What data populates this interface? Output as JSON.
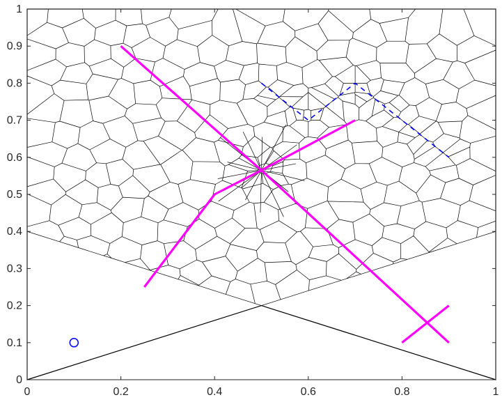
{
  "chart_data": {
    "type": "line",
    "title": "",
    "xlabel": "",
    "ylabel": "",
    "xlim": [
      0,
      1
    ],
    "ylim": [
      0,
      1
    ],
    "grid": false,
    "x_ticks": [
      "0",
      "0.2",
      "0.4",
      "0.6",
      "0.8",
      "1"
    ],
    "y_ticks": [
      "0",
      "0.1",
      "0.2",
      "0.3",
      "0.4",
      "0.5",
      "0.6",
      "0.7",
      "0.8",
      "0.9",
      "1"
    ],
    "colors": {
      "magenta": "#ff00ff",
      "blue": "#0000ff",
      "mesh": "#000000"
    },
    "series": [
      {
        "style": "solid",
        "color": "magenta",
        "points": [
          [
            0.2,
            0.9
          ],
          [
            0.5,
            0.565
          ],
          [
            0.9,
            0.1
          ]
        ]
      },
      {
        "style": "solid",
        "color": "magenta",
        "points": [
          [
            0.25,
            0.25
          ],
          [
            0.4,
            0.5
          ],
          [
            0.5,
            0.565
          ],
          [
            0.7,
            0.7
          ]
        ]
      },
      {
        "style": "solid",
        "color": "magenta",
        "points": [
          [
            0.8,
            0.1
          ],
          [
            0.9,
            0.2
          ]
        ]
      },
      {
        "style": "dashed",
        "color": "blue",
        "points": [
          [
            0.5,
            0.8
          ],
          [
            0.6,
            0.7
          ],
          [
            0.7,
            0.8
          ],
          [
            0.9,
            0.6
          ]
        ]
      }
    ],
    "markers": [
      {
        "shape": "circle",
        "color": "blue",
        "x": 0.1,
        "y": 0.1
      }
    ],
    "domain_boundary": [
      [
        0,
        0
      ],
      [
        0.5,
        0.2
      ],
      [
        1,
        0
      ],
      [
        1,
        1
      ],
      [
        0,
        1
      ]
    ]
  }
}
